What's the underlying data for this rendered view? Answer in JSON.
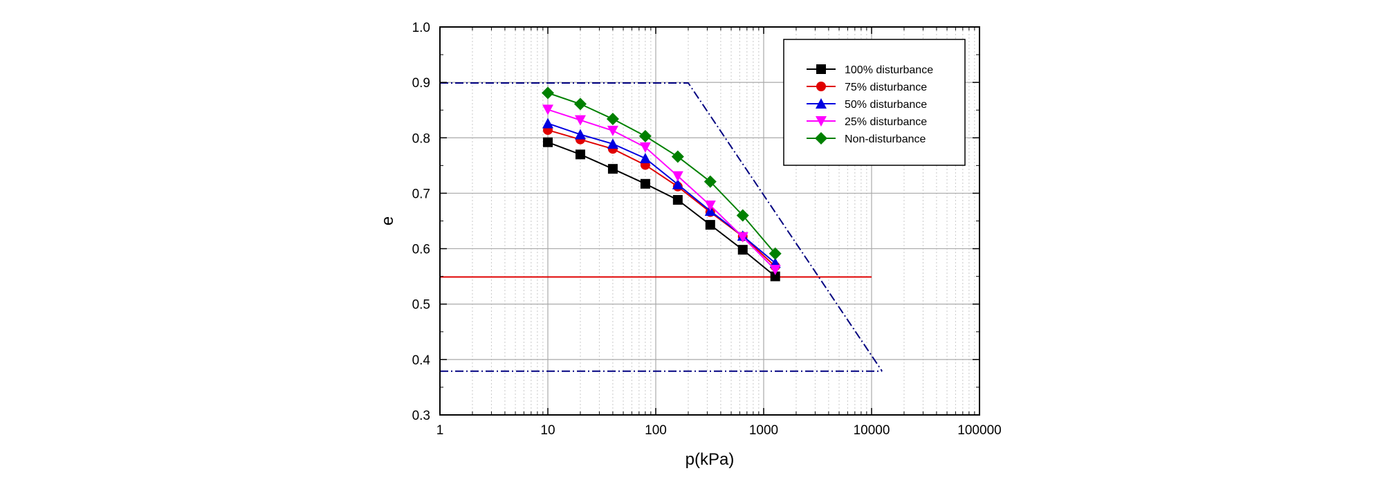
{
  "chart_data": {
    "type": "line",
    "xscale": "log",
    "xlabel": "p(kPa)",
    "ylabel": "e",
    "xlim": [
      1,
      100000
    ],
    "ylim": [
      0.3,
      1.0
    ],
    "grid": true,
    "legend_position": "top-right",
    "x_tick_labels": [
      "1",
      "10",
      "100",
      "1000",
      "10000",
      "100000"
    ],
    "y_tick_labels": [
      "0.3",
      "0.4",
      "0.5",
      "0.6",
      "0.7",
      "0.8",
      "0.9",
      "1.0"
    ],
    "x": [
      10,
      20,
      40,
      80,
      160,
      320,
      640,
      1280
    ],
    "series": [
      {
        "name": "100% disturbance",
        "color": "#000000",
        "marker": "square",
        "values": [
          0.792,
          0.77,
          0.744,
          0.717,
          0.688,
          0.643,
          0.598,
          0.55
        ]
      },
      {
        "name": "75% disturbance",
        "color": "#e00000",
        "marker": "circle",
        "values": [
          0.814,
          0.797,
          0.78,
          0.751,
          0.712,
          0.666,
          0.622,
          0.568
        ]
      },
      {
        "name": "50% disturbance",
        "color": "#0000e0",
        "marker": "triangle-up",
        "values": [
          0.826,
          0.806,
          0.789,
          0.763,
          0.716,
          0.668,
          0.623,
          0.574
        ]
      },
      {
        "name": "25% disturbance",
        "color": "#ff00ff",
        "marker": "triangle-down",
        "values": [
          0.851,
          0.832,
          0.813,
          0.783,
          0.731,
          0.678,
          0.621,
          0.562
        ]
      },
      {
        "name": "Non-disturbance",
        "color": "#008000",
        "marker": "diamond",
        "values": [
          0.881,
          0.861,
          0.834,
          0.803,
          0.766,
          0.721,
          0.66,
          0.591
        ]
      }
    ],
    "reference_lines": [
      {
        "name": "red-horizontal",
        "style": "solid",
        "color": "#e00000",
        "points": [
          [
            1,
            0.549
          ],
          [
            10000,
            0.549
          ]
        ]
      },
      {
        "name": "upper-dash-dot",
        "style": "dash-dot",
        "color": "#000080",
        "points": [
          [
            1,
            0.899
          ],
          [
            200,
            0.899
          ],
          [
            12500,
            0.379
          ]
        ]
      },
      {
        "name": "lower-dash-dot",
        "style": "dash-dot",
        "color": "#000080",
        "points": [
          [
            1,
            0.379
          ],
          [
            12500,
            0.379
          ]
        ]
      }
    ]
  }
}
